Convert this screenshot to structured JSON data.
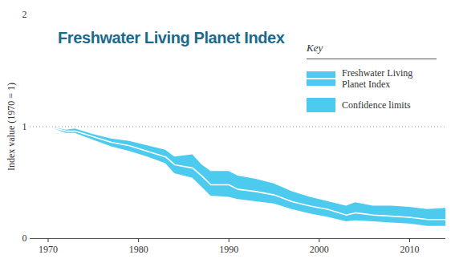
{
  "chart_data": {
    "type": "line",
    "title": "Freshwater Living Planet Index",
    "y_label": "Index value (1970 = 1)",
    "x": [
      1970,
      1972,
      1973,
      1975,
      1977,
      1979,
      1981,
      1983,
      1984,
      1986,
      1987,
      1988,
      1990,
      1991,
      1993,
      1995,
      1997,
      1999,
      2001,
      2003,
      2004,
      2006,
      2008,
      2010,
      2012,
      2014
    ],
    "series": [
      {
        "name": "Freshwater Living Planet Index",
        "color": "#ffffff",
        "values": [
          1.0,
          0.96,
          0.96,
          0.91,
          0.86,
          0.83,
          0.78,
          0.73,
          0.66,
          0.63,
          0.56,
          0.48,
          0.48,
          0.44,
          0.42,
          0.39,
          0.33,
          0.29,
          0.26,
          0.21,
          0.23,
          0.21,
          0.2,
          0.19,
          0.17,
          0.17
        ]
      }
    ],
    "confidence_limits": {
      "name": "Confidence limits",
      "color": "#4ccbef",
      "lower": [
        1.0,
        0.94,
        0.94,
        0.88,
        0.82,
        0.78,
        0.73,
        0.67,
        0.58,
        0.54,
        0.46,
        0.38,
        0.37,
        0.35,
        0.33,
        0.31,
        0.26,
        0.22,
        0.19,
        0.15,
        0.16,
        0.15,
        0.14,
        0.13,
        0.11,
        0.11
      ],
      "upper": [
        1.0,
        0.97,
        0.98,
        0.93,
        0.89,
        0.87,
        0.83,
        0.79,
        0.73,
        0.75,
        0.66,
        0.6,
        0.6,
        0.56,
        0.53,
        0.49,
        0.42,
        0.37,
        0.33,
        0.29,
        0.32,
        0.29,
        0.29,
        0.28,
        0.26,
        0.27
      ]
    },
    "legend_title": "Key",
    "legend": "top-right",
    "reference_lines": [
      1
    ],
    "xlim": [
      1968,
      2014
    ],
    "xticks": [
      1970,
      1980,
      1990,
      2000,
      2010
    ],
    "ylim": [
      0,
      2
    ],
    "yticks": [
      0,
      1,
      2
    ],
    "grid": false
  }
}
